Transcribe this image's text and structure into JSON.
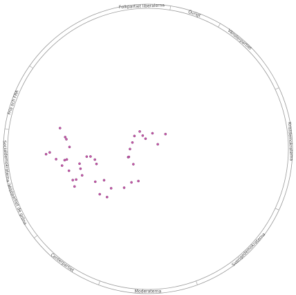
{
  "chart_data": {
    "type": "scatter",
    "segments": [
      {
        "label": "Folkpartiet liberalerna"
      },
      {
        "label": "Övrigt"
      },
      {
        "label": "Vänsterpartiet"
      },
      {
        "label": "Kristdemokraterna"
      },
      {
        "label": "Sverigedemokraterna"
      },
      {
        "label": "Moderaterna"
      },
      {
        "label": "Centerpartiet"
      },
      {
        "label": "Miljöpartiet de gröna"
      },
      {
        "label": "Socialdemokraterna"
      },
      {
        "label": "Fria och FRA"
      }
    ],
    "points": [
      {
        "x": -0.649,
        "y": -0.153,
        "label": ""
      },
      {
        "x": -0.611,
        "y": -0.087,
        "label": ""
      },
      {
        "x": -0.602,
        "y": -0.071,
        "label": ""
      },
      {
        "x": -0.579,
        "y": -0.014,
        "label": ""
      },
      {
        "x": -0.752,
        "y": 0.039,
        "label": ""
      },
      {
        "x": -0.725,
        "y": 0.026,
        "label": ""
      },
      {
        "x": -0.678,
        "y": 0.076,
        "label": ""
      },
      {
        "x": -0.634,
        "y": 0.123,
        "label": ""
      },
      {
        "x": -0.615,
        "y": 0.083,
        "label": ""
      },
      {
        "x": -0.599,
        "y": 0.078,
        "label": ""
      },
      {
        "x": -0.583,
        "y": 0.161,
        "label": ""
      },
      {
        "x": -0.555,
        "y": 0.23,
        "label": ""
      },
      {
        "x": -0.542,
        "y": 0.277,
        "label": ""
      },
      {
        "x": -0.53,
        "y": 0.226,
        "label": ""
      },
      {
        "x": -0.505,
        "y": 0.109,
        "label": ""
      },
      {
        "x": -0.498,
        "y": 0.146,
        "label": ""
      },
      {
        "x": -0.486,
        "y": 0.195,
        "label": ""
      },
      {
        "x": -0.452,
        "y": 0.057,
        "label": ""
      },
      {
        "x": -0.424,
        "y": 0.056,
        "label": ""
      },
      {
        "x": -0.392,
        "y": 0.079,
        "label": ""
      },
      {
        "x": -0.38,
        "y": 0.111,
        "label": ""
      },
      {
        "x": -0.389,
        "y": 0.242,
        "label": ""
      },
      {
        "x": -0.324,
        "y": 0.231,
        "label": ""
      },
      {
        "x": -0.356,
        "y": 0.334,
        "label": ""
      },
      {
        "x": -0.302,
        "y": 0.355,
        "label": ""
      },
      {
        "x": -0.272,
        "y": 0.29,
        "label": ""
      },
      {
        "x": -0.176,
        "y": 0.286,
        "label": ""
      },
      {
        "x": -0.122,
        "y": 0.247,
        "label": ""
      },
      {
        "x": -0.071,
        "y": 0.237,
        "label": ""
      },
      {
        "x": -0.108,
        "y": 0.113,
        "label": ""
      },
      {
        "x": -0.146,
        "y": 0.061,
        "label": ""
      },
      {
        "x": -0.141,
        "y": 0.059,
        "label": ""
      },
      {
        "x": -0.133,
        "y": 0.001,
        "label": ""
      },
      {
        "x": -0.115,
        "y": -0.047,
        "label": ""
      },
      {
        "x": -0.1,
        "y": -0.095,
        "label": ""
      },
      {
        "x": -0.061,
        "y": -0.128,
        "label": ""
      },
      {
        "x": -0.039,
        "y": -0.098,
        "label": ""
      },
      {
        "x": -0.018,
        "y": -0.075,
        "label": ""
      },
      {
        "x": 0.033,
        "y": -0.115,
        "label": ""
      },
      {
        "x": 0.072,
        "y": -0.034,
        "label": ""
      },
      {
        "x": 0.129,
        "y": -0.109,
        "label": ""
      }
    ],
    "colors": {
      "ring": "#999999",
      "point_fill": "#cc55aa",
      "point_stroke": "#663366",
      "label": "#555555"
    }
  }
}
